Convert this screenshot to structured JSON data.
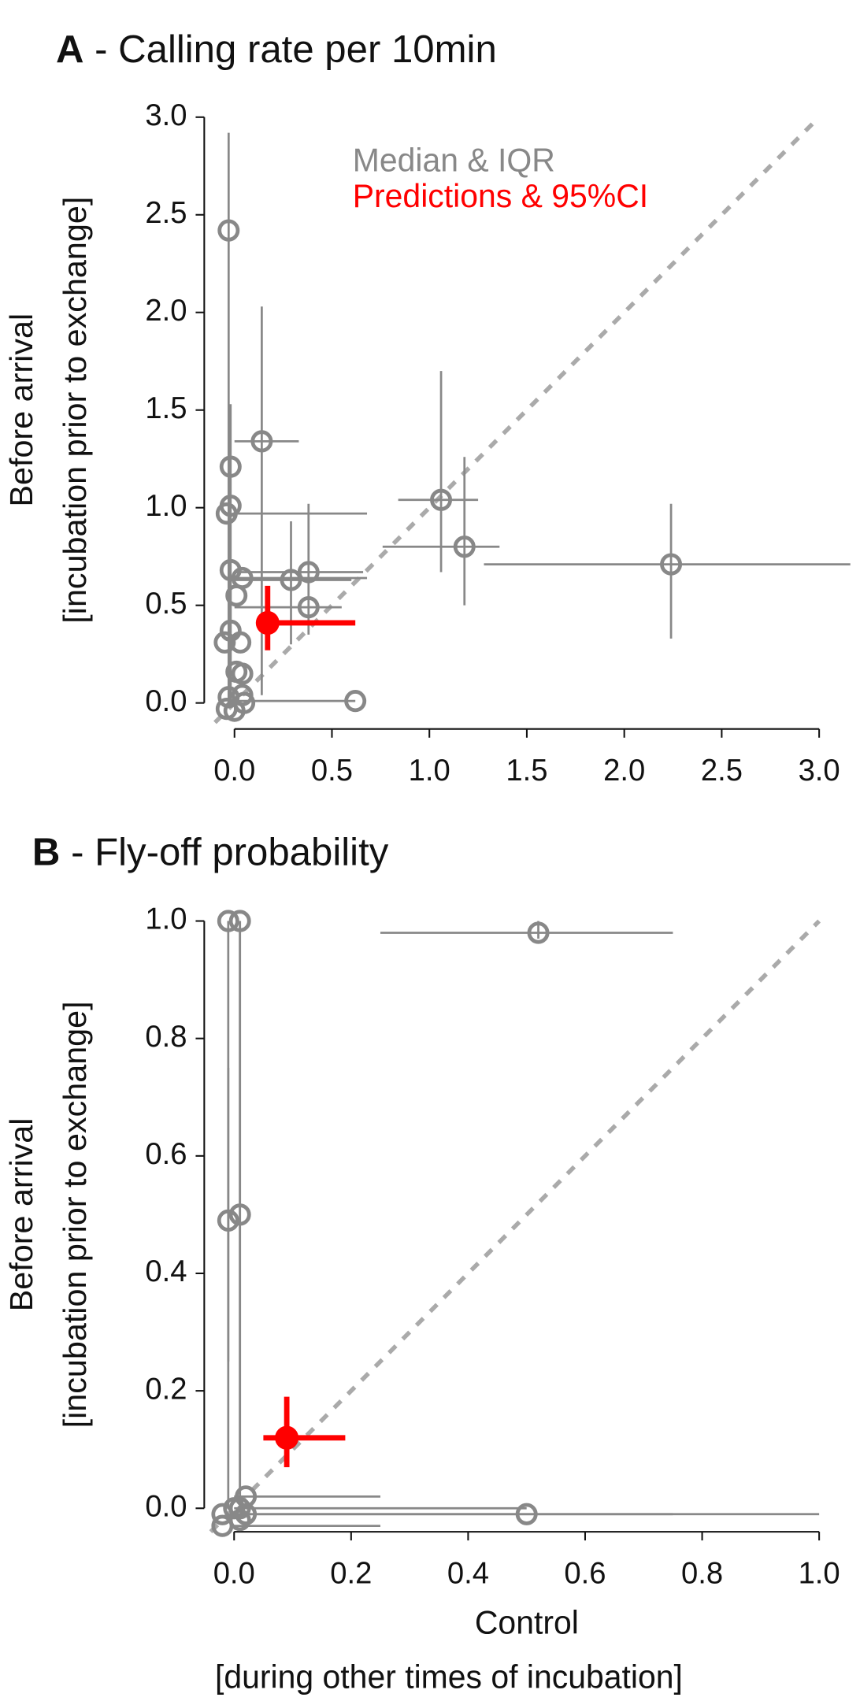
{
  "chart_data": [
    {
      "type": "scatter",
      "panel": "A",
      "title": "- Calling rate per 10min",
      "y_label": [
        "Before arrival",
        "[incubation prior to exchange]"
      ],
      "xlim": [
        -0.1,
        3.0
      ],
      "ylim": [
        -0.1,
        3.0
      ],
      "xticks": [
        {
          "value": 0,
          "label": "0.0"
        },
        {
          "value": 0.5,
          "label": "0.5"
        },
        {
          "value": 1,
          "label": "1.0"
        },
        {
          "value": 1.5,
          "label": "1.5"
        },
        {
          "value": 2,
          "label": "2.0"
        },
        {
          "value": 2.5,
          "label": "2.5"
        },
        {
          "value": 3,
          "label": "3.0"
        }
      ],
      "yticks": [
        {
          "value": 0,
          "label": "0.0"
        },
        {
          "value": 0.5,
          "label": "0.5"
        },
        {
          "value": 1,
          "label": "1.0"
        },
        {
          "value": 1.5,
          "label": "1.5"
        },
        {
          "value": 2,
          "label": "2.0"
        },
        {
          "value": 2.5,
          "label": "2.5"
        },
        {
          "value": 3,
          "label": "3.0"
        }
      ],
      "identity_line": true,
      "legend": "top-left",
      "series": [
        {
          "name": "Median & IQR",
          "color": "#888888",
          "filled": false,
          "x": [
            -0.03,
            0.14,
            -0.02,
            -0.02,
            -0.04,
            1.06,
            1.18,
            2.24,
            -0.02,
            0.04,
            0.29,
            0.38,
            0.38,
            0.01,
            -0.02,
            -0.05,
            0.03,
            0.01,
            0.04,
            -0.03,
            0.04,
            -0.04,
            0.0,
            0.05,
            0.62
          ],
          "values": [
            2.42,
            1.34,
            1.21,
            1.01,
            0.97,
            1.04,
            0.8,
            0.71,
            0.68,
            0.64,
            0.63,
            0.67,
            0.49,
            0.55,
            0.37,
            0.31,
            0.31,
            0.16,
            0.15,
            0.03,
            0.04,
            -0.03,
            -0.04,
            0.0,
            0.01
          ],
          "x_low": [
            null,
            0.0,
            null,
            null,
            0.0,
            0.84,
            0.76,
            1.28,
            null,
            0.0,
            0.0,
            0.0,
            0.0,
            null,
            null,
            null,
            null,
            null,
            null,
            null,
            null,
            null,
            null,
            null,
            0.0
          ],
          "x_high": [
            null,
            0.33,
            null,
            null,
            0.68,
            1.25,
            1.36,
            3.16,
            null,
            0.68,
            0.6,
            0.66,
            0.55,
            null,
            null,
            null,
            null,
            null,
            null,
            null,
            null,
            null,
            null,
            null,
            0.62
          ],
          "y_low": [
            0.0,
            0.04,
            0.0,
            null,
            null,
            0.67,
            0.5,
            0.33,
            null,
            null,
            0.3,
            0.35,
            null,
            null,
            0.0,
            null,
            null,
            null,
            null,
            null,
            null,
            null,
            null,
            null,
            null
          ],
          "y_high": [
            2.92,
            2.03,
            1.53,
            null,
            null,
            1.7,
            1.26,
            1.02,
            null,
            null,
            0.93,
            1.02,
            null,
            null,
            0.62,
            null,
            null,
            null,
            null,
            null,
            null,
            null,
            null,
            null,
            null
          ]
        },
        {
          "name": "Predictions & 95%CI",
          "color": "#ff0000",
          "filled": true,
          "x": [
            0.17
          ],
          "values": [
            0.41
          ],
          "x_low": [
            0.12
          ],
          "x_high": [
            0.62
          ],
          "y_low": [
            0.27
          ],
          "y_high": [
            0.6
          ]
        }
      ]
    },
    {
      "type": "scatter",
      "panel": "B",
      "title": "- Fly-off probability",
      "y_label": [
        "Before arrival",
        "[incubation prior to exchange]"
      ],
      "x_label": [
        "Control",
        "[during other times of incubation]"
      ],
      "xlim": [
        -0.04,
        1.0
      ],
      "ylim": [
        -0.04,
        1.0
      ],
      "xticks": [
        {
          "value": 0,
          "label": "0.0"
        },
        {
          "value": 0.2,
          "label": "0.2"
        },
        {
          "value": 0.4,
          "label": "0.4"
        },
        {
          "value": 0.6,
          "label": "0.6"
        },
        {
          "value": 0.8,
          "label": "0.8"
        },
        {
          "value": 1,
          "label": "1.0"
        }
      ],
      "yticks": [
        {
          "value": 0,
          "label": "0.0"
        },
        {
          "value": 0.2,
          "label": "0.2"
        },
        {
          "value": 0.4,
          "label": "0.4"
        },
        {
          "value": 0.6,
          "label": "0.6"
        },
        {
          "value": 0.8,
          "label": "0.8"
        },
        {
          "value": 1,
          "label": "1.0"
        }
      ],
      "identity_line": true,
      "series": [
        {
          "color": "#888888",
          "filled": false,
          "x": [
            -0.01,
            0.01,
            0.52,
            -0.01,
            0.01,
            0.02,
            0.0,
            -0.02,
            -0.02,
            0.01,
            0.02,
            0.5,
            0.01
          ],
          "values": [
            1.0,
            1.0,
            0.98,
            0.49,
            0.5,
            0.02,
            0.0,
            -0.01,
            -0.03,
            -0.02,
            -0.01,
            -0.01,
            0.0
          ],
          "x_low": [
            null,
            null,
            0.25,
            null,
            null,
            0.0,
            null,
            null,
            0.0,
            null,
            0.0,
            0.0,
            0.0
          ],
          "x_high": [
            null,
            null,
            0.75,
            null,
            null,
            0.25,
            null,
            null,
            0.25,
            null,
            1.0,
            0.75,
            0.5
          ],
          "y_low": [
            0.0,
            0.0,
            0.97,
            0.25,
            0.0,
            null,
            null,
            null,
            null,
            null,
            null,
            null,
            null
          ],
          "y_high": [
            1.0,
            1.0,
            1.0,
            0.75,
            1.0,
            null,
            null,
            null,
            null,
            null,
            null,
            null,
            null
          ]
        },
        {
          "color": "#ff0000",
          "filled": true,
          "x": [
            0.09
          ],
          "values": [
            0.12
          ],
          "x_low": [
            0.05
          ],
          "x_high": [
            0.19
          ],
          "y_low": [
            0.07
          ],
          "y_high": [
            0.19
          ]
        }
      ]
    }
  ]
}
